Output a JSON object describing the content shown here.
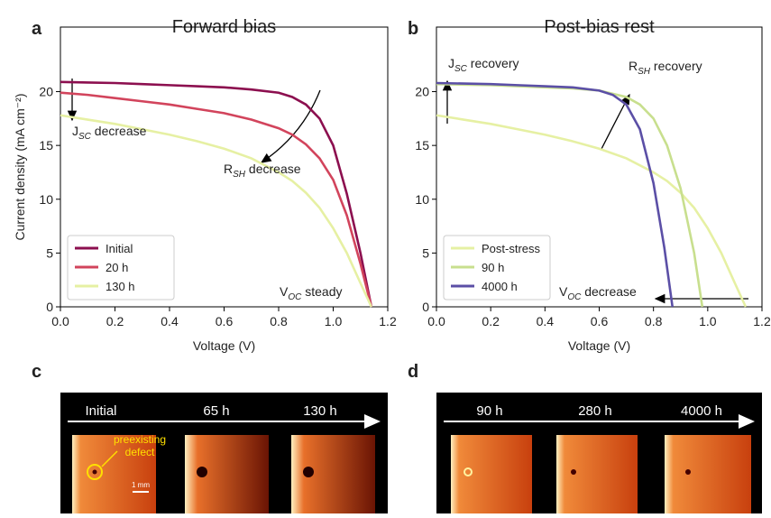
{
  "chart_data": [
    {
      "type": "line",
      "panel": "a",
      "title": "Forward bias",
      "xlabel": "Voltage (V)",
      "ylabel": "Current density (mA cm⁻²)",
      "xlim": [
        0,
        1.2
      ],
      "ylim": [
        0,
        26
      ],
      "xticks": [
        {
          "value": 0,
          "label": "0.0"
        },
        0.2,
        0.4,
        0.6,
        0.8,
        {
          "value": 1,
          "label": "1.0"
        },
        1.2
      ],
      "yticks": [
        0,
        5,
        10,
        15,
        20
      ],
      "legend": "lower left",
      "series": [
        {
          "name": "Initial",
          "color": "#8c0f4f",
          "x": [
            0,
            0.1,
            0.2,
            0.3,
            0.4,
            0.5,
            0.6,
            0.7,
            0.8,
            0.85,
            0.9,
            0.95,
            1.0,
            1.05,
            1.1,
            1.14
          ],
          "values": [
            20.9,
            20.85,
            20.8,
            20.7,
            20.6,
            20.5,
            20.4,
            20.2,
            19.9,
            19.5,
            18.8,
            17.5,
            15,
            10.5,
            5,
            0
          ]
        },
        {
          "name": "20 h",
          "color": "#d2445c",
          "x": [
            0,
            0.1,
            0.2,
            0.3,
            0.4,
            0.5,
            0.6,
            0.7,
            0.8,
            0.85,
            0.9,
            0.95,
            1.0,
            1.05,
            1.1,
            1.14
          ],
          "values": [
            19.9,
            19.7,
            19.4,
            19.1,
            18.8,
            18.4,
            18.0,
            17.4,
            16.6,
            16.0,
            15.1,
            13.8,
            11.8,
            8.5,
            4,
            0
          ]
        },
        {
          "name": "130 h",
          "color": "#e6f0a3",
          "x": [
            0,
            0.1,
            0.2,
            0.3,
            0.4,
            0.5,
            0.6,
            0.7,
            0.8,
            0.85,
            0.9,
            0.95,
            1.0,
            1.05,
            1.1,
            1.14
          ],
          "values": [
            17.8,
            17.4,
            17.0,
            16.5,
            16.0,
            15.4,
            14.7,
            13.8,
            12.5,
            11.7,
            10.6,
            9.2,
            7.3,
            5,
            2.2,
            0
          ]
        }
      ],
      "annotations": [
        {
          "text": "J",
          "sub": "SC",
          "after": " decrease"
        },
        {
          "text": "R",
          "sub": "SH",
          "after": " decrease"
        },
        {
          "text": "V",
          "sub": "OC",
          "after": " steady"
        }
      ]
    },
    {
      "type": "line",
      "panel": "b",
      "title": "Post-bias rest",
      "xlabel": "Voltage (V)",
      "xlim": [
        0,
        1.2
      ],
      "ylim": [
        0,
        26
      ],
      "xticks": [
        {
          "value": 0,
          "label": "0.0"
        },
        0.2,
        0.4,
        0.6,
        0.8,
        {
          "value": 1,
          "label": "1.0"
        },
        1.2
      ],
      "yticks": [
        0,
        5,
        10,
        15,
        20
      ],
      "legend": "lower left",
      "series": [
        {
          "name": "Post-stress",
          "color": "#e6f0a3",
          "x": [
            0,
            0.1,
            0.2,
            0.3,
            0.4,
            0.5,
            0.6,
            0.7,
            0.8,
            0.85,
            0.9,
            0.95,
            1.0,
            1.05,
            1.1,
            1.14
          ],
          "values": [
            17.8,
            17.4,
            17.0,
            16.5,
            16.0,
            15.4,
            14.7,
            13.8,
            12.5,
            11.7,
            10.6,
            9.2,
            7.3,
            5,
            2.2,
            0
          ]
        },
        {
          "name": "90 h",
          "color": "#c8df8e",
          "x": [
            0,
            0.1,
            0.2,
            0.3,
            0.4,
            0.5,
            0.6,
            0.7,
            0.75,
            0.8,
            0.85,
            0.9,
            0.95,
            0.98
          ],
          "values": [
            20.7,
            20.65,
            20.6,
            20.5,
            20.4,
            20.3,
            20.1,
            19.5,
            18.8,
            17.5,
            15,
            11,
            5,
            0
          ]
        },
        {
          "name": "4000 h",
          "color": "#5b4fa6",
          "x": [
            0,
            0.1,
            0.2,
            0.3,
            0.4,
            0.5,
            0.6,
            0.65,
            0.7,
            0.75,
            0.8,
            0.84,
            0.87
          ],
          "values": [
            20.8,
            20.75,
            20.7,
            20.6,
            20.5,
            20.4,
            20.1,
            19.7,
            18.8,
            16.5,
            11.5,
            5.5,
            0
          ]
        }
      ],
      "annotations": [
        {
          "text": "J",
          "sub": "SC",
          "after": " recovery"
        },
        {
          "text": "R",
          "sub": "SH",
          "after": " recovery"
        },
        {
          "text": "V",
          "sub": "OC",
          "after": " decrease"
        }
      ]
    }
  ],
  "panels": [
    {
      "label": "c",
      "frames": [
        "Initial",
        "65 h",
        "130 h"
      ],
      "defect_note": "preexisting defect",
      "scale_bar": "1 mm"
    },
    {
      "label": "d",
      "frames": [
        "90 h",
        "280 h",
        "4000 h"
      ]
    }
  ]
}
